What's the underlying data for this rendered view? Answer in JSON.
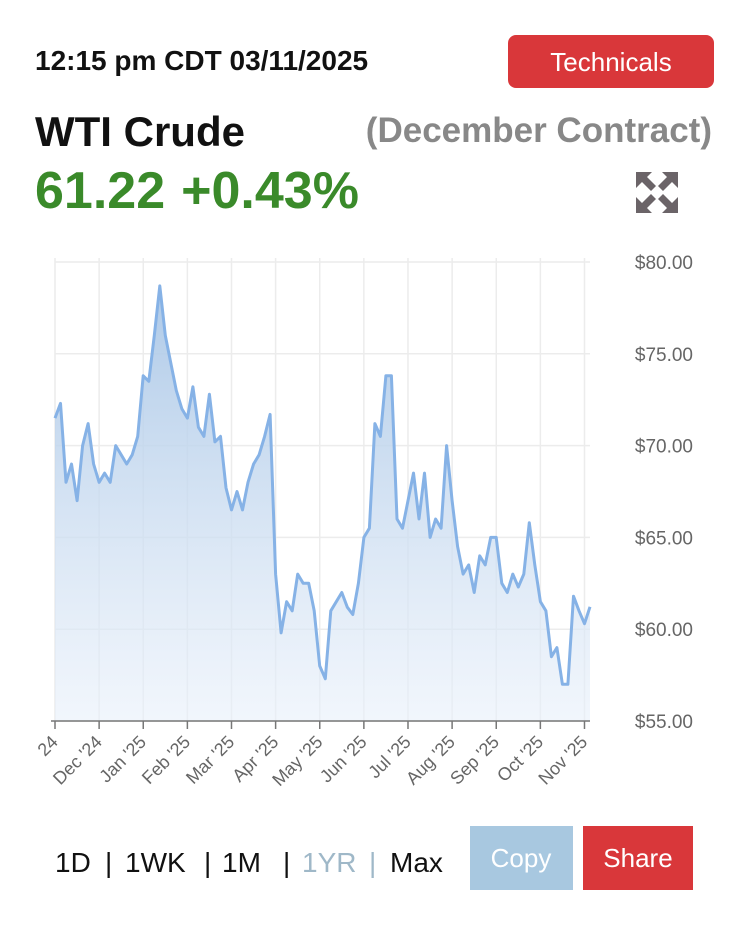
{
  "header": {
    "timestamp": "12:15 pm CDT 03/11/2025",
    "button": "Technicals",
    "name": "WTI Crude",
    "contract": "(December Contract)",
    "price": "61.22",
    "change": "+0.43%"
  },
  "chart_data": {
    "type": "line",
    "categories": [
      "24",
      null,
      null,
      null,
      null,
      null,
      null,
      null,
      "Dec '24",
      null,
      null,
      null,
      null,
      null,
      null,
      null,
      "Jan '25",
      null,
      null,
      null,
      null,
      null,
      null,
      null,
      "Feb '25",
      null,
      null,
      null,
      null,
      null,
      null,
      null,
      "Mar '25",
      null,
      null,
      null,
      null,
      null,
      null,
      null,
      "Apr '25",
      null,
      null,
      null,
      null,
      null,
      null,
      null,
      "May '25",
      null,
      null,
      null,
      null,
      null,
      null,
      null,
      "Jun '25",
      null,
      null,
      null,
      null,
      null,
      null,
      null,
      "Jul '25",
      null,
      null,
      null,
      null,
      null,
      null,
      null,
      "Aug '25",
      null,
      null,
      null,
      null,
      null,
      null,
      null,
      "Sep '25",
      null,
      null,
      null,
      null,
      null,
      null,
      null,
      "Oct '25",
      null,
      null,
      null,
      null,
      null,
      null,
      null,
      "Nov '25",
      null
    ],
    "values": [
      71.5,
      72.3,
      68,
      69,
      67,
      70,
      71.2,
      69,
      68,
      68.5,
      68,
      70,
      69.5,
      69,
      69.5,
      70.5,
      73.8,
      73.5,
      76,
      78.7,
      76,
      74.5,
      73,
      72,
      71.5,
      73.2,
      71,
      70.5,
      72.8,
      70.2,
      70.5,
      67.7,
      66.5,
      67.5,
      66.5,
      68,
      69,
      69.5,
      70.5,
      71.7,
      63,
      59.8,
      61.5,
      61,
      63,
      62.5,
      62.5,
      61,
      58,
      57.3,
      61,
      61.5,
      62,
      61.2,
      60.8,
      62.5,
      65,
      65.5,
      71.2,
      70.5,
      73.8,
      73.8,
      66,
      65.5,
      67,
      68.5,
      66,
      68.5,
      65,
      66,
      65.5,
      70,
      67,
      64.5,
      63,
      63.5,
      62,
      64,
      63.5,
      65,
      65,
      62.5,
      62,
      63,
      62.3,
      63,
      65.8,
      63.5,
      61.5,
      61,
      58.5,
      59,
      57,
      57,
      61.8,
      61,
      60.3,
      61.22
    ],
    "color": "#86b2e6",
    "ylim": [
      55,
      80
    ],
    "yticks": [
      {
        "value": 55,
        "label": "$55.00"
      },
      {
        "value": 60,
        "label": "$60.00"
      },
      {
        "value": 65,
        "label": "$65.00"
      },
      {
        "value": 70,
        "label": "$70.00"
      },
      {
        "value": 75,
        "label": "$75.00"
      },
      {
        "value": 80,
        "label": "$80.00"
      }
    ],
    "grid": true
  },
  "range": {
    "options": [
      "1D",
      "1WK",
      "1M",
      "1YR",
      "Max"
    ],
    "separator": "|",
    "active": 3
  },
  "actions": [
    "Copy",
    "Share"
  ]
}
